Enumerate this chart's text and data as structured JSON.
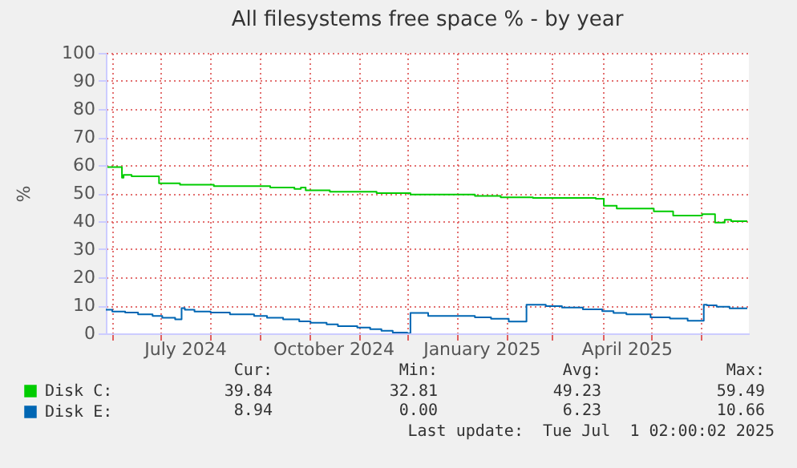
{
  "chart_data": {
    "type": "step",
    "title": "All filesystems free space % - by year",
    "ylabel": "%",
    "xlim": [
      "2024-05-28",
      "2025-07-01"
    ],
    "ylim": [
      0,
      100
    ],
    "yticks": [
      0,
      10,
      20,
      30,
      40,
      50,
      60,
      70,
      80,
      90,
      100
    ],
    "xticks": [
      {
        "value": "2024-06-01",
        "label": null
      },
      {
        "value": "2024-07-01",
        "label": null
      },
      {
        "value": "2024-08-01",
        "label": null
      },
      {
        "value": "2024-09-01",
        "label": null
      },
      {
        "value": "2024-10-01",
        "label": null
      },
      {
        "value": "2024-11-01",
        "label": null
      },
      {
        "value": "2024-12-01",
        "label": null
      },
      {
        "value": "2025-01-01",
        "label": null
      },
      {
        "value": "2025-02-01",
        "label": null
      },
      {
        "value": "2025-03-01",
        "label": null
      },
      {
        "value": "2025-04-01",
        "label": null
      },
      {
        "value": "2025-05-01",
        "label": null
      },
      {
        "value": "2025-06-01",
        "label": null
      },
      {
        "value": "2024-07-16",
        "label": "July 2024"
      },
      {
        "value": "2024-10-16",
        "label": "October 2024"
      },
      {
        "value": "2025-01-16",
        "label": "January 2025"
      },
      {
        "value": "2025-04-16",
        "label": "April 2025"
      }
    ],
    "grid": true,
    "legend": "bottom left",
    "series": [
      {
        "name": "Disk C:",
        "color": "#00cc00",
        "x": [
          "2024-05-29",
          "2024-06-06",
          "2024-06-07",
          "2024-06-08",
          "2024-06-13",
          "2024-06-26",
          "2024-06-30",
          "2024-07-13",
          "2024-08-03",
          "2024-09-07",
          "2024-09-22",
          "2024-09-26",
          "2024-09-29",
          "2024-10-14",
          "2024-11-12",
          "2024-12-03",
          "2025-01-12",
          "2025-01-28",
          "2025-02-17",
          "2025-03-28",
          "2025-04-02",
          "2025-04-10",
          "2025-05-03",
          "2025-05-08",
          "2025-05-15",
          "2025-06-02",
          "2025-06-10",
          "2025-06-16",
          "2025-06-20",
          "2025-06-30"
        ],
        "values": [
          59.3,
          59.3,
          55.5,
          56.5,
          56,
          56,
          53.5,
          53,
          52.5,
          52,
          51.5,
          52,
          51,
          50.5,
          50,
          49.5,
          49,
          48.5,
          48.3,
          48,
          45.5,
          44.5,
          43.5,
          43.5,
          42,
          42.5,
          39.5,
          40.5,
          40,
          40
        ]
      },
      {
        "name": "Disk E:",
        "color": "#0066b3",
        "x": [
          "2024-05-28",
          "2024-06-01",
          "2024-06-09",
          "2024-06-17",
          "2024-06-26",
          "2024-07-02",
          "2024-07-10",
          "2024-07-14",
          "2024-07-16",
          "2024-07-22",
          "2024-08-01",
          "2024-08-13",
          "2024-08-28",
          "2024-09-05",
          "2024-09-15",
          "2024-09-25",
          "2024-10-02",
          "2024-10-12",
          "2024-10-19",
          "2024-10-31",
          "2024-11-08",
          "2024-11-15",
          "2024-11-22",
          "2024-12-01",
          "2024-12-03",
          "2024-12-14",
          "2025-01-12",
          "2025-01-22",
          "2025-02-02",
          "2025-02-13",
          "2025-02-25",
          "2025-03-07",
          "2025-03-20",
          "2025-04-01",
          "2025-04-08",
          "2025-04-16",
          "2025-05-01",
          "2025-05-13",
          "2025-05-24",
          "2025-06-03",
          "2025-06-05",
          "2025-06-11",
          "2025-06-19",
          "2025-06-30"
        ],
        "values": [
          8.4,
          7.8,
          7.4,
          6.8,
          6.2,
          5.6,
          5.0,
          9.0,
          8.4,
          7.8,
          7.4,
          6.8,
          6.2,
          5.6,
          5.0,
          4.3,
          3.8,
          3.2,
          2.6,
          2.1,
          1.5,
          0.9,
          0.3,
          0,
          7.3,
          6.2,
          5.7,
          5.2,
          4.2,
          10.2,
          9.7,
          9.2,
          8.6,
          7.9,
          7.3,
          6.8,
          5.7,
          5.3,
          4.5,
          10.2,
          10.0,
          9.5,
          8.9,
          8.9
        ]
      }
    ],
    "annotations": [
      "Cur:",
      "Min:",
      "Avg:",
      "Max:",
      "39.84",
      "32.81",
      "49.23",
      "59.49",
      "8.94",
      "0.00",
      "6.23",
      "10.66",
      "Last update:  Tue Jul  1 02:00:02 2025"
    ]
  }
}
